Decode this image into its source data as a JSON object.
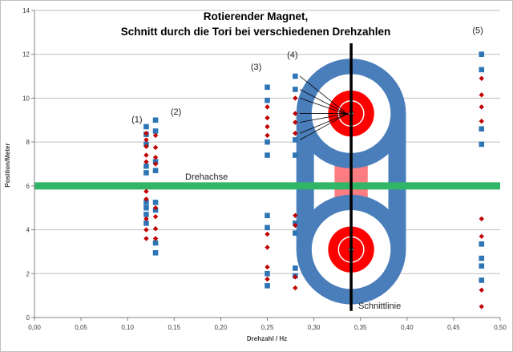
{
  "chart_data": {
    "type": "scatter",
    "title_lines": [
      "Rotierender Magnet,",
      "Schnitt durch die Tori bei verschiedenen Drehzahlen"
    ],
    "xlabel": "Drehzahl / Hz",
    "ylabel": "Position/Meter",
    "xlim": [
      0,
      0.5
    ],
    "ylim": [
      0,
      14
    ],
    "x_ticks": [
      "0,00",
      "0,05",
      "0,10",
      "0,15",
      "0,20",
      "0,25",
      "0,30",
      "0,35",
      "0,40",
      "0,45",
      "0,50"
    ],
    "y_ticks": [
      "0",
      "2",
      "4",
      "6",
      "8",
      "10",
      "12",
      "14"
    ],
    "grid": "horizontal",
    "colors": {
      "squares": "#2e75b6",
      "diamonds": "#c00000",
      "axis_line": "#31b566",
      "torus_ring": "#4a7ebb",
      "magnet": "#ff0000",
      "field_band": "#ff7c80",
      "gridline": "#bfbfbf"
    },
    "series": [
      {
        "marker": "square",
        "points": [
          [
            0.12,
            8.7
          ],
          [
            0.12,
            8.35
          ],
          [
            0.12,
            7.9
          ],
          [
            0.12,
            6.9
          ],
          [
            0.12,
            6.6
          ],
          [
            0.12,
            5.25
          ],
          [
            0.12,
            5.0
          ],
          [
            0.12,
            4.7
          ],
          [
            0.12,
            4.3
          ],
          [
            0.13,
            9.0
          ],
          [
            0.13,
            8.5
          ],
          [
            0.13,
            7.1
          ],
          [
            0.13,
            6.7
          ],
          [
            0.13,
            5.25
          ],
          [
            0.13,
            4.9
          ],
          [
            0.13,
            3.4
          ],
          [
            0.13,
            2.95
          ],
          [
            0.25,
            10.5
          ],
          [
            0.25,
            9.9
          ],
          [
            0.25,
            8.0
          ],
          [
            0.25,
            7.4
          ],
          [
            0.25,
            4.65
          ],
          [
            0.25,
            4.1
          ],
          [
            0.25,
            2.0
          ],
          [
            0.25,
            1.45
          ],
          [
            0.28,
            11.0
          ],
          [
            0.28,
            10.4
          ],
          [
            0.28,
            8.1
          ],
          [
            0.28,
            7.4
          ],
          [
            0.28,
            4.3
          ],
          [
            0.28,
            3.85
          ],
          [
            0.28,
            2.25
          ],
          [
            0.28,
            1.9
          ],
          [
            0.48,
            12.0
          ],
          [
            0.48,
            11.3
          ],
          [
            0.48,
            8.6
          ],
          [
            0.48,
            7.9
          ],
          [
            0.48,
            3.35
          ],
          [
            0.48,
            2.7
          ],
          [
            0.48,
            2.35
          ],
          [
            0.48,
            1.7
          ]
        ]
      },
      {
        "marker": "diamond",
        "points": [
          [
            0.12,
            8.4
          ],
          [
            0.12,
            8.1
          ],
          [
            0.12,
            7.8
          ],
          [
            0.12,
            7.4
          ],
          [
            0.12,
            7.1
          ],
          [
            0.12,
            5.75
          ],
          [
            0.12,
            5.4
          ],
          [
            0.12,
            4.5
          ],
          [
            0.12,
            4.0
          ],
          [
            0.12,
            3.6
          ],
          [
            0.13,
            8.3
          ],
          [
            0.13,
            7.75
          ],
          [
            0.13,
            7.3
          ],
          [
            0.13,
            7.0
          ],
          [
            0.13,
            5.0
          ],
          [
            0.13,
            4.6
          ],
          [
            0.13,
            4.05
          ],
          [
            0.13,
            3.6
          ],
          [
            0.25,
            9.6
          ],
          [
            0.25,
            9.1
          ],
          [
            0.25,
            8.7
          ],
          [
            0.25,
            8.3
          ],
          [
            0.25,
            3.8
          ],
          [
            0.25,
            3.2
          ],
          [
            0.25,
            2.3
          ],
          [
            0.25,
            1.75
          ],
          [
            0.28,
            10.0
          ],
          [
            0.28,
            9.3
          ],
          [
            0.28,
            8.9
          ],
          [
            0.28,
            8.4
          ],
          [
            0.28,
            4.65
          ],
          [
            0.28,
            4.2
          ],
          [
            0.28,
            1.85
          ],
          [
            0.28,
            1.35
          ],
          [
            0.48,
            10.9
          ],
          [
            0.48,
            10.15
          ],
          [
            0.48,
            9.6
          ],
          [
            0.48,
            8.95
          ],
          [
            0.48,
            4.5
          ],
          [
            0.48,
            3.7
          ],
          [
            0.48,
            1.25
          ],
          [
            0.48,
            0.5
          ]
        ]
      }
    ],
    "axis_line": {
      "y": 6.0,
      "label": "Drehachse"
    },
    "schnittlinie": {
      "x": 0.34,
      "label": "Schnittlinie"
    },
    "tori": [
      {
        "cx": 0.34,
        "cy": 9.3,
        "r_outer": 2.5,
        "r_inner": 1.8,
        "r_magnet": 1.05
      },
      {
        "cx": 0.34,
        "cy": 3.1,
        "r_outer": 2.5,
        "r_inner": 1.8,
        "r_magnet": 1.05
      }
    ],
    "column_labels": [
      {
        "text": "(1)",
        "x": 0.11,
        "y": 8.9
      },
      {
        "text": "(2)",
        "x": 0.152,
        "y": 9.25
      },
      {
        "text": "(3)",
        "x": 0.238,
        "y": 11.3
      },
      {
        "text": "(4)",
        "x": 0.277,
        "y": 11.85
      },
      {
        "text": "(5)",
        "x": 0.476,
        "y": 12.95
      }
    ]
  }
}
